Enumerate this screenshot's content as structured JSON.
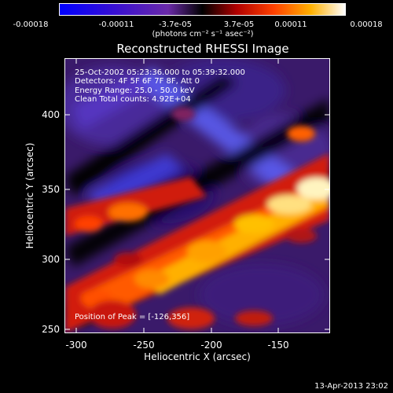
{
  "colorbar": {
    "tick_labels": [
      "-0.00018",
      "-0.00011",
      "-3.7e-05",
      "3.7e-05",
      "0.00011",
      "0.00018"
    ],
    "units_label": "(photons cm⁻² s⁻¹ asec⁻²)"
  },
  "plot": {
    "title": "Reconstructed RHESSI Image",
    "info_lines": [
      "25-Oct-2002 05:23:36.000 to 05:39:32.000",
      "Detectors: 4F 5F 6F 7F 8F, Att 0",
      "Energy Range: 25.0 - 50.0 keV",
      "Clean     Total counts: 4.92E+04"
    ],
    "peak_label": "Position of Peak = [-126,356]",
    "xlabel": "Heliocentric X (arcsec)",
    "ylabel": "Heliocentric Y (arcsec)",
    "x_ticks": [
      "-300",
      "-250",
      "-200",
      "-150"
    ],
    "y_ticks": [
      "400",
      "350",
      "300",
      "250"
    ]
  },
  "footer": {
    "timestamp": "13-Apr-2013 23:02"
  },
  "colors": {
    "background": "#000000",
    "frame": "#ffffff"
  }
}
